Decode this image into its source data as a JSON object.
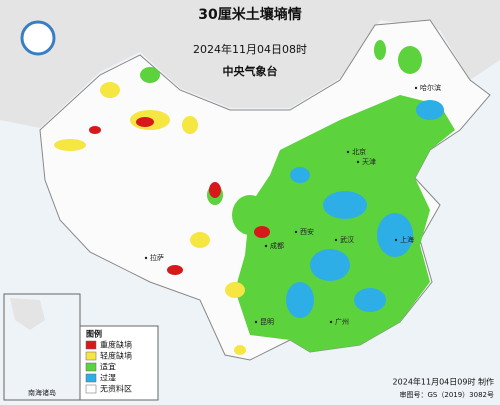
{
  "header": {
    "title": "30厘米土壤墒情",
    "time": "2024年11月04日08时",
    "agency": "中央气象台"
  },
  "legend": {
    "title": "图例",
    "items": [
      {
        "label": "重度缺墒",
        "color": "#d7191c"
      },
      {
        "label": "轻度缺墒",
        "color": "#f5e642"
      },
      {
        "label": "适宜",
        "color": "#5cd23c"
      },
      {
        "label": "过湿",
        "color": "#2eaee6"
      },
      {
        "label": "无资料区",
        "color": "#ffffff"
      }
    ]
  },
  "inset": {
    "label": "南海诸岛"
  },
  "places": [
    "北京",
    "天津",
    "上海",
    "西安",
    "拉萨",
    "成都",
    "武汉",
    "广州",
    "哈尔滨",
    "昆明"
  ],
  "footer": {
    "made": "2024年11月04日09时 制作",
    "approval": "审图号：GS（2019）3082号"
  }
}
